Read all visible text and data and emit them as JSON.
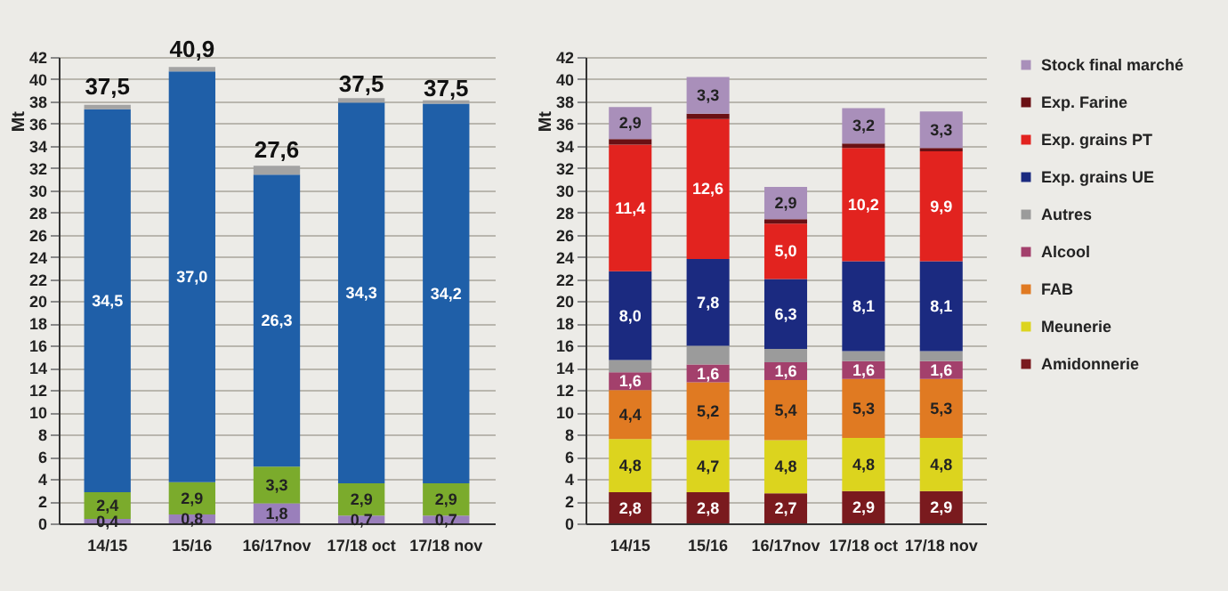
{
  "chart_data": [
    {
      "type": "bar",
      "stacked": true,
      "ylabel": "Mt",
      "categories": [
        "14/15",
        "15/16",
        "16/17nov",
        "17/18 oct",
        "17/18 nov"
      ],
      "ylim": [
        0,
        42
      ],
      "yticks": [
        0,
        2,
        4,
        6,
        8,
        10,
        12,
        14,
        16,
        18,
        20,
        22,
        24,
        26,
        28,
        30,
        32,
        34,
        36,
        38,
        40,
        42
      ],
      "grid": "y",
      "series": [
        {
          "color": "#9a7fbb",
          "values": [
            0.4,
            0.8,
            1.8,
            0.7,
            0.7
          ],
          "value_labels": [
            "0,4",
            "0,8",
            "1,8",
            "0,7",
            "0,7"
          ]
        },
        {
          "color": "#7bab2c",
          "values": [
            2.4,
            2.9,
            3.3,
            2.9,
            2.9
          ],
          "value_labels": [
            "2,4",
            "2,9",
            "3,3",
            "2,9",
            "2,9"
          ]
        },
        {
          "color": "#1f5fa8",
          "values": [
            34.5,
            37.0,
            26.3,
            34.3,
            34.2
          ],
          "value_labels": [
            "34,5",
            "37,0",
            "26,3",
            "34,3",
            "34,2"
          ]
        },
        {
          "color": "#a3a3a3",
          "values": [
            0.4,
            0.4,
            0.8,
            0.4,
            0.3
          ]
        }
      ],
      "annotations": [
        {
          "text": "37,5",
          "x": "14/15",
          "y": 37.7
        },
        {
          "text": "40,9",
          "x": "15/16",
          "y": 41.0
        },
        {
          "text": "27,6",
          "x": "16/17nov",
          "y": 32.0
        },
        {
          "text": "37,5",
          "x": "17/18 oct",
          "y": 37.9
        },
        {
          "text": "37,5",
          "x": "17/18 nov",
          "y": 37.5
        }
      ]
    },
    {
      "type": "bar",
      "stacked": true,
      "ylabel": "Mt",
      "categories": [
        "14/15",
        "15/16",
        "16/17nov",
        "17/18 oct",
        "17/18 nov"
      ],
      "ylim": [
        0,
        42
      ],
      "yticks": [
        0,
        2,
        4,
        6,
        8,
        10,
        12,
        14,
        16,
        18,
        20,
        22,
        24,
        26,
        28,
        30,
        32,
        34,
        36,
        38,
        40,
        42
      ],
      "grid": "y",
      "legend": "right",
      "series": [
        {
          "name": "Amidonnerie",
          "color": "#7a1a1e",
          "values": [
            2.8,
            2.8,
            2.7,
            2.9,
            2.9
          ],
          "value_labels": [
            "2,8",
            "2,8",
            "2,7",
            "2,9",
            "2,9"
          ]
        },
        {
          "name": "Meunerie",
          "color": "#dcd41e",
          "values": [
            4.8,
            4.7,
            4.8,
            4.8,
            4.8
          ],
          "value_labels": [
            "4,8",
            "4,7",
            "4,8",
            "4,8",
            "4,8"
          ]
        },
        {
          "name": "FAB",
          "color": "#e07a22",
          "values": [
            4.4,
            5.2,
            5.4,
            5.3,
            5.3
          ],
          "value_labels": [
            "4,4",
            "5,2",
            "5,4",
            "5,3",
            "5,3"
          ]
        },
        {
          "name": "Alcool",
          "color": "#a3406c",
          "values": [
            1.6,
            1.6,
            1.6,
            1.6,
            1.6
          ],
          "value_labels": [
            "1,6",
            "1,6",
            "1,6",
            "1,6",
            "1,6"
          ]
        },
        {
          "name": "Autres",
          "color": "#9b9b9b",
          "values": [
            1.1,
            1.7,
            1.2,
            0.9,
            0.9
          ]
        },
        {
          "name": "Exp. grains UE",
          "color": "#1b2a80",
          "values": [
            8.0,
            7.8,
            6.3,
            8.1,
            8.1
          ],
          "value_labels": [
            "8,0",
            "7,8",
            "6,3",
            "8,1",
            "8,1"
          ]
        },
        {
          "name": "Exp. grains PT",
          "color": "#e2231f",
          "values": [
            11.4,
            12.6,
            5.0,
            10.2,
            9.9
          ],
          "value_labels": [
            "11,4",
            "12,6",
            "5,0",
            "10,2",
            "9,9"
          ]
        },
        {
          "name": "Exp. Farine",
          "color": "#6a1014",
          "values": [
            0.5,
            0.5,
            0.4,
            0.4,
            0.3
          ]
        },
        {
          "name": "Stock final marché",
          "color": "#a98fba",
          "values": [
            2.9,
            3.3,
            2.9,
            3.2,
            3.3
          ],
          "value_labels": [
            "2,9",
            "3,3",
            "2,9",
            "3,2",
            "3,3"
          ]
        }
      ]
    }
  ]
}
